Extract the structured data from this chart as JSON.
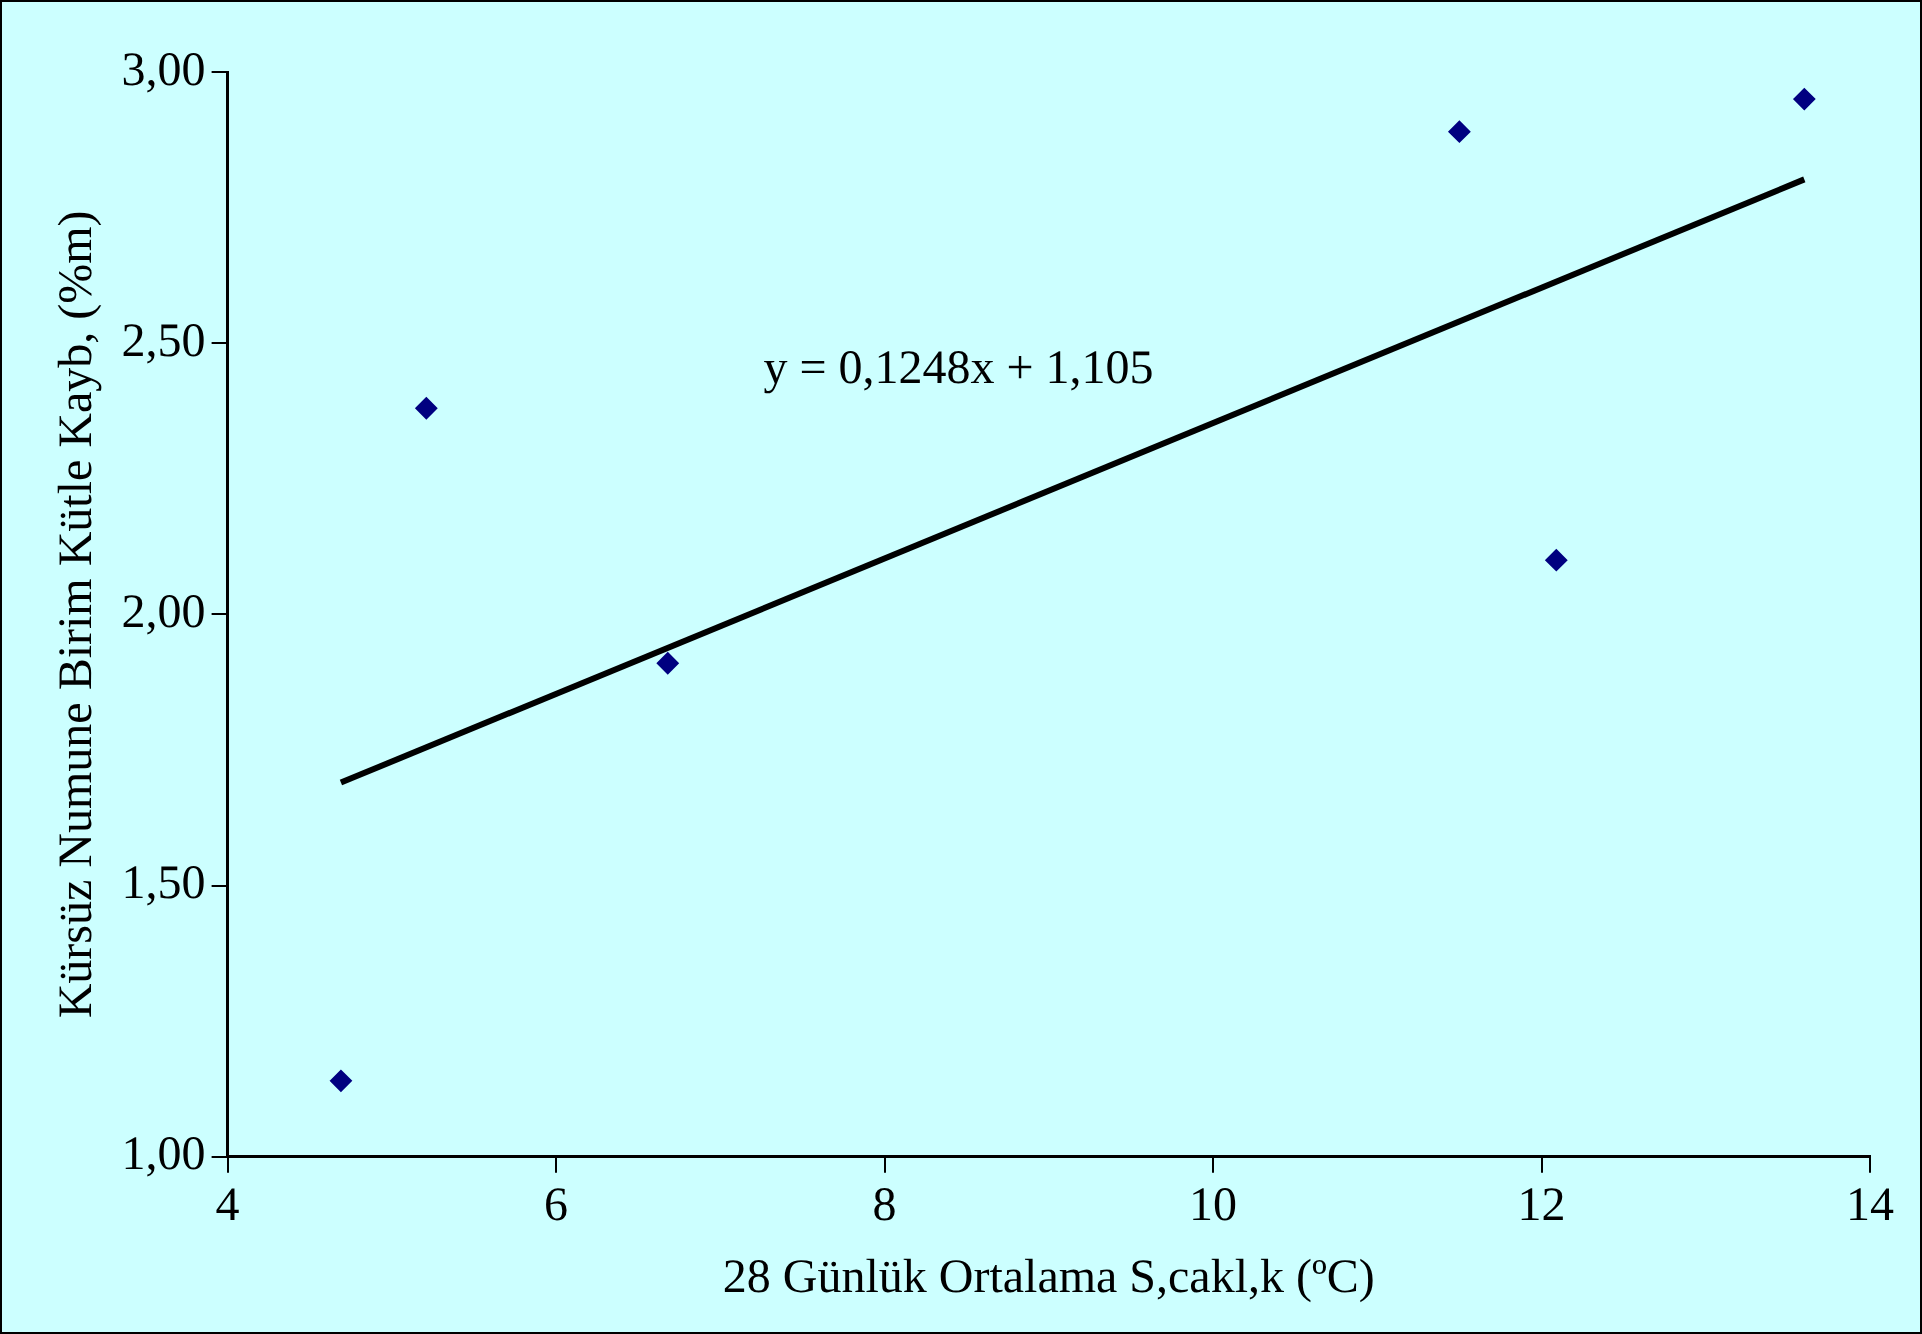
{
  "chart_data": {
    "type": "scatter",
    "xlabel": "28 Günlük Ortalama S,cakl,k (ºC)",
    "ylabel": "Kürsüz Numune Birim Kütle Kayb, (%m)",
    "series": [
      {
        "color": "#000080",
        "marker": "diamond",
        "x": [
          4.69,
          5.21,
          6.68,
          11.5,
          12.09,
          13.6
        ],
        "values": [
          1.14,
          2.38,
          1.91,
          2.89,
          2.1,
          2.95
        ]
      },
      {
        "type": "line",
        "color": "#000000",
        "marker": "none",
        "line_style": "solid",
        "x": [
          4.69,
          13.6
        ],
        "values": [
          1.69,
          2.802
        ]
      }
    ],
    "annotations": [
      "y = 0,1248x + 1,105"
    ],
    "xlim": [
      4,
      14
    ],
    "xticks": [
      4,
      6,
      8,
      10,
      12,
      14
    ],
    "ylim": [
      1,
      3
    ],
    "yticks": [
      {
        "value": 1,
        "label": "1,00"
      },
      {
        "value": 1.5,
        "label": "1,50"
      },
      {
        "value": 2,
        "label": "2,00"
      },
      {
        "value": 2.5,
        "label": "2,50"
      },
      {
        "value": 3,
        "label": "3,00"
      }
    ],
    "grid": false,
    "legend": false
  }
}
